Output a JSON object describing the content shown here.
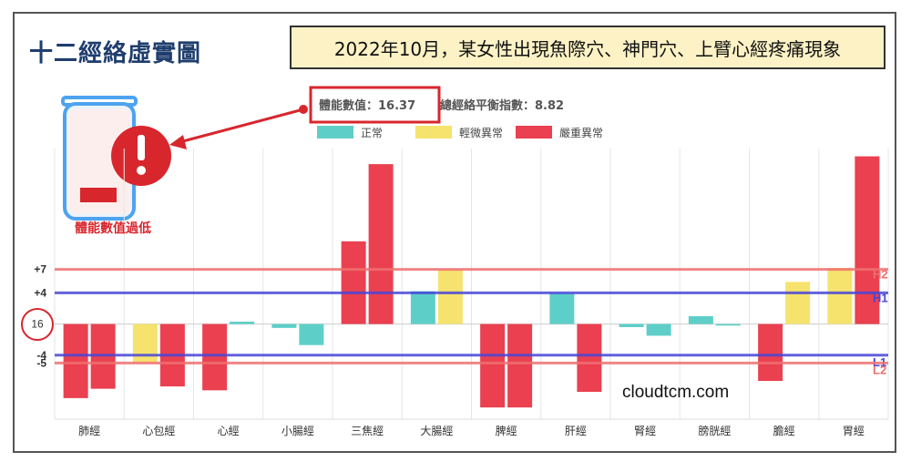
{
  "main_title": "十二經絡虛實圖",
  "headline": "2022年10月，某女性出現魚際穴、神門穴、上臂心經疼痛現象",
  "battery_caption": "體能數值過低",
  "watermark": "cloudtcm.com",
  "summary": {
    "energy_text": "體能數值：16.37",
    "balance_text": "總經絡平衡指數：8.82"
  },
  "colors": {
    "normal": "#5ecfc8",
    "mild": "#f6e36e",
    "severe": "#ea4050",
    "h1_l1": "#4646d8",
    "h2_l2": "#ef7070",
    "highlight_red": "#d8262d"
  },
  "chart_data": {
    "type": "bar",
    "categories": [
      "肺經",
      "心包經",
      "心經",
      "小腸經",
      "三焦經",
      "大腸經",
      "脾經",
      "肝經",
      "腎經",
      "膀胱經",
      "膽經",
      "胃經"
    ],
    "legend": [
      {
        "name": "正常",
        "color_key": "normal"
      },
      {
        "name": "輕微異常",
        "color_key": "mild"
      },
      {
        "name": "嚴重異常",
        "color_key": "severe"
      }
    ],
    "bars": [
      [
        {
          "value": -9.5,
          "status": "severe"
        },
        {
          "value": -8.3,
          "status": "severe"
        }
      ],
      [
        {
          "value": -4.9,
          "status": "mild"
        },
        {
          "value": -8.0,
          "status": "severe"
        }
      ],
      [
        {
          "value": -8.5,
          "status": "severe"
        },
        {
          "value": 0.3,
          "status": "normal"
        }
      ],
      [
        {
          "value": -0.5,
          "status": "normal"
        },
        {
          "value": -2.7,
          "status": "normal"
        }
      ],
      [
        {
          "value": 10.6,
          "status": "severe"
        },
        {
          "value": 20.5,
          "status": "severe"
        }
      ],
      [
        {
          "value": 4.2,
          "status": "normal"
        },
        {
          "value": 7.0,
          "status": "mild"
        }
      ],
      [
        {
          "value": -10.7,
          "status": "severe"
        },
        {
          "value": -10.7,
          "status": "severe"
        }
      ],
      [
        {
          "value": 3.9,
          "status": "normal"
        },
        {
          "value": -8.7,
          "status": "severe"
        }
      ],
      [
        {
          "value": -0.4,
          "status": "normal"
        },
        {
          "value": -1.5,
          "status": "normal"
        }
      ],
      [
        {
          "value": 1.0,
          "status": "normal"
        },
        {
          "value": -0.2,
          "status": "normal"
        }
      ],
      [
        {
          "value": -7.3,
          "status": "severe"
        },
        {
          "value": 5.4,
          "status": "mild"
        }
      ],
      [
        {
          "value": 7.2,
          "status": "mild"
        },
        {
          "value": 21.5,
          "status": "severe"
        }
      ]
    ],
    "reference_lines": [
      {
        "name": "H2",
        "value": 7,
        "tick": "+7",
        "color_key": "h2_l2"
      },
      {
        "name": "H1",
        "value": 4,
        "tick": "+4",
        "color_key": "h1_l1"
      },
      {
        "name": "L1",
        "value": -4,
        "tick": "-4",
        "color_key": "h1_l1"
      },
      {
        "name": "L2",
        "value": -5,
        "tick": "-5",
        "color_key": "h2_l2"
      }
    ],
    "baseline": {
      "value": 0,
      "tick": "16"
    },
    "ylim": [
      -11.5,
      22.5
    ]
  }
}
